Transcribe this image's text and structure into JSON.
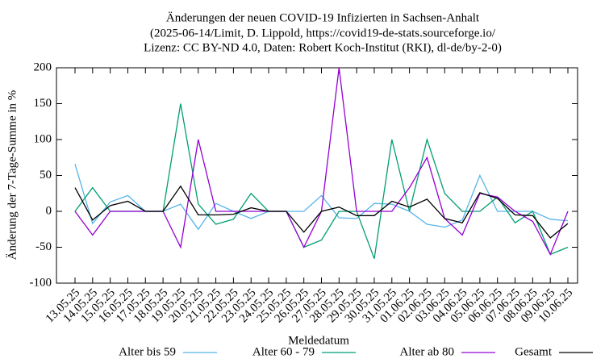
{
  "chart_data": {
    "type": "line",
    "title_lines": [
      "Änderungen der neuen COVID-19 Infizierten in Sachsen-Anhalt",
      "(2025-06-14/Limit, D. Lippold, https://covid19-de-stats.sourceforge.io/",
      "Lizenz: CC BY-ND 4.0, Daten: Robert Koch-Institut (RKI), dl-de/by-2-0)"
    ],
    "xlabel": "Meldedatum",
    "ylabel": "Änderung der 7-Tage-Summe in %",
    "categories": [
      "13.05.25",
      "14.05.25",
      "15.05.25",
      "16.05.25",
      "17.05.25",
      "18.05.25",
      "19.05.25",
      "20.05.25",
      "21.05.25",
      "22.05.25",
      "23.05.25",
      "24.05.25",
      "25.05.25",
      "26.05.25",
      "27.05.25",
      "28.05.25",
      "29.05.25",
      "30.05.25",
      "31.05.25",
      "01.06.25",
      "02.06.25",
      "03.06.25",
      "04.06.25",
      "05.06.25",
      "06.06.25",
      "07.06.25",
      "08.06.25",
      "09.06.25",
      "10.06.25"
    ],
    "series": [
      {
        "name": "Alter bis 59",
        "color": "#56b4e9",
        "values": [
          66,
          -17,
          13,
          22,
          0,
          0,
          10,
          -25,
          11,
          0,
          -10,
          0,
          0,
          0,
          22,
          -9,
          -10,
          11,
          10,
          0,
          -18,
          -22,
          -12,
          50,
          0,
          0,
          0,
          -11,
          -13
        ]
      },
      {
        "name": "Alter 60 - 79",
        "color": "#009e73",
        "values": [
          0,
          33,
          0,
          0,
          0,
          0,
          150,
          10,
          -18,
          -11,
          25,
          0,
          0,
          -50,
          -40,
          0,
          0,
          -66,
          100,
          0,
          100,
          25,
          0,
          0,
          20,
          -16,
          0,
          -60,
          -50
        ]
      },
      {
        "name": "Alter ab 80",
        "color": "#9400d3",
        "values": [
          0,
          -33,
          0,
          0,
          0,
          0,
          -50,
          100,
          0,
          0,
          0,
          0,
          0,
          -50,
          0,
          200,
          0,
          0,
          0,
          33,
          75,
          -10,
          -33,
          25,
          20,
          0,
          -14,
          -60,
          0
        ]
      },
      {
        "name": "Gesamt",
        "color": "#000000",
        "values": [
          33,
          -12,
          8,
          14,
          0,
          0,
          35,
          -5,
          -5,
          -4,
          5,
          0,
          0,
          -29,
          0,
          6,
          -6,
          -6,
          14,
          6,
          17,
          -10,
          -16,
          26,
          18,
          -5,
          -6,
          -37,
          -17
        ]
      }
    ],
    "ylim": [
      -100,
      200
    ],
    "yticks": [
      -100,
      -50,
      0,
      50,
      100,
      150,
      200
    ],
    "legend": "bottom"
  }
}
